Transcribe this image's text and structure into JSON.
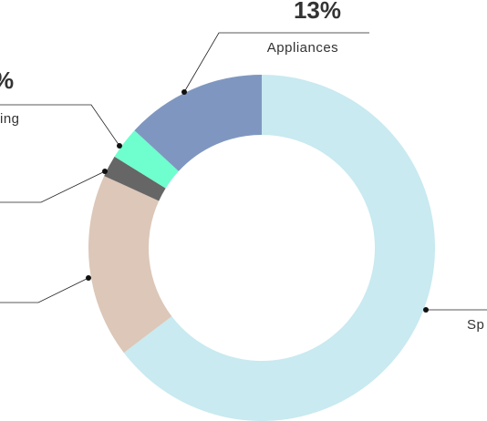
{
  "chart_data": {
    "type": "donut",
    "categories": [
      "Sp",
      null,
      null,
      "ing",
      "Appliances"
    ],
    "values": [
      64,
      17,
      2,
      3,
      13
    ],
    "value_labels": [
      null,
      null,
      null,
      "%",
      "13%"
    ],
    "colors": [
      "#c8eaf0",
      "#dcc7b8",
      "#666666",
      "#6fffcf",
      "#7f97c0"
    ]
  }
}
